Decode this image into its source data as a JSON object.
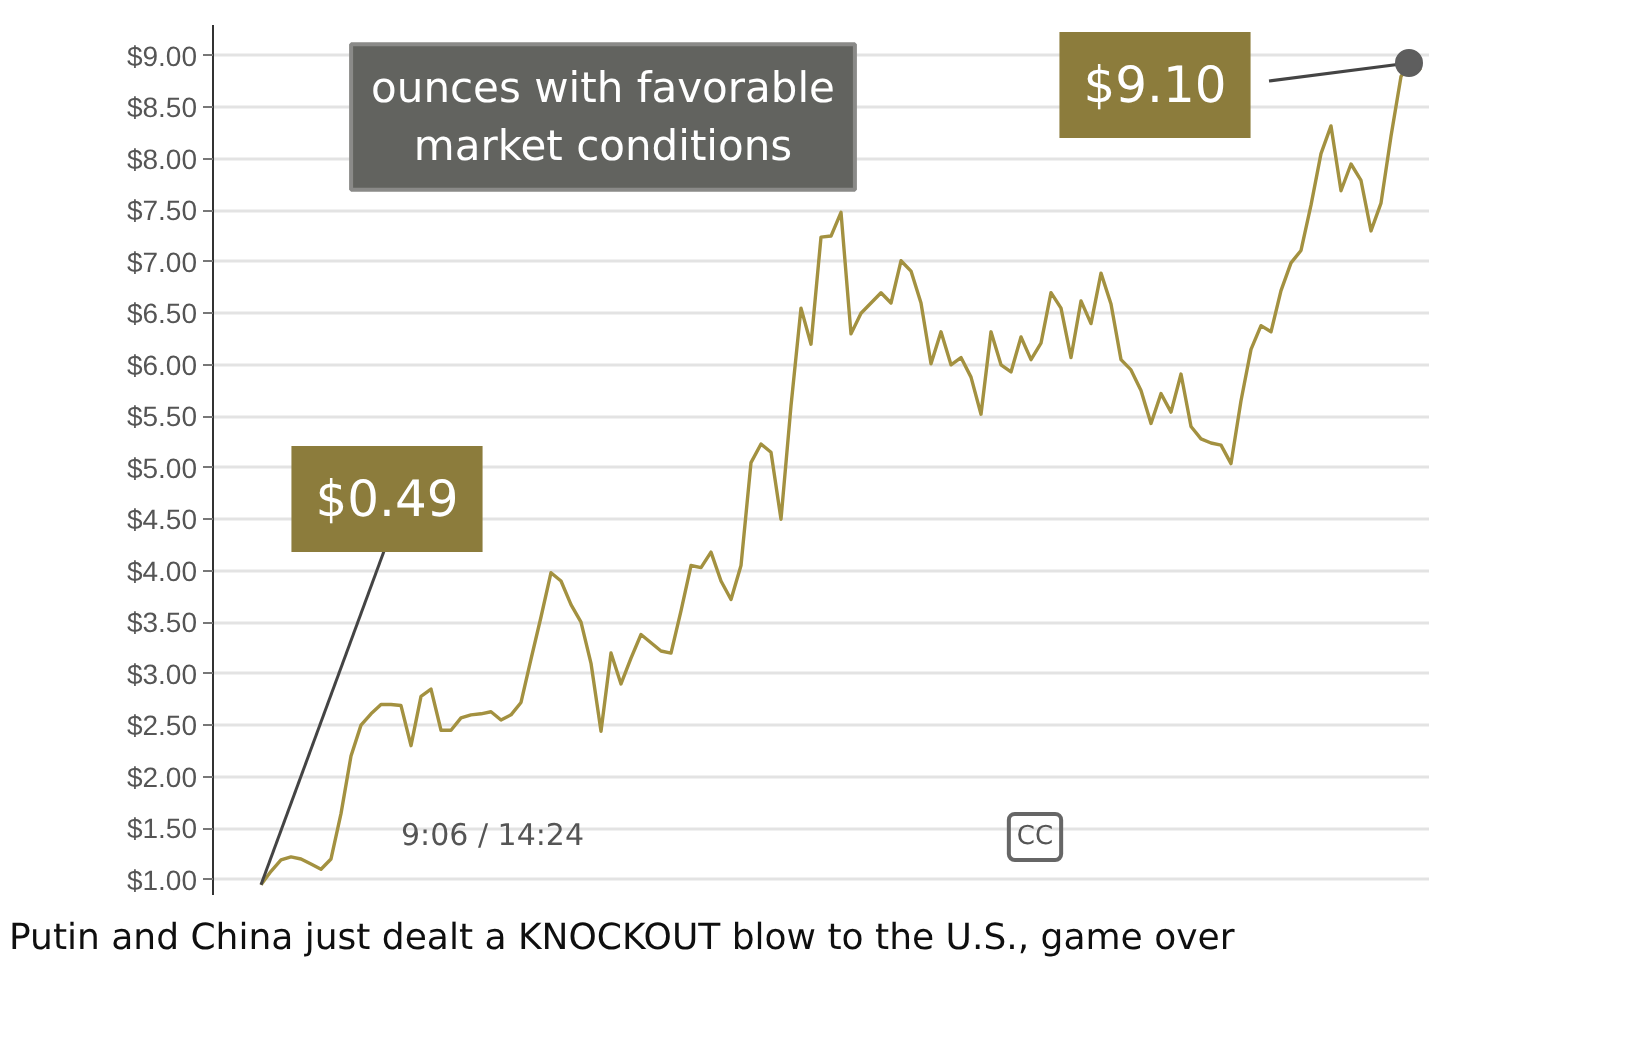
{
  "chart_data": {
    "type": "line",
    "title": "Putin and China just dealt a KNOCKOUT blow to the U.S., game over",
    "categories": [
      null,
      null,
      null,
      null,
      null,
      null,
      null,
      null,
      null,
      null,
      null,
      null,
      null,
      null,
      null,
      null,
      null,
      null,
      null,
      null,
      null,
      null,
      null,
      null,
      null,
      null,
      null,
      null,
      null,
      null,
      null,
      null,
      null,
      null,
      null,
      null,
      null,
      null,
      null,
      null,
      null,
      null,
      null,
      null,
      null,
      null,
      null,
      null,
      null,
      null,
      null,
      null,
      null,
      null,
      null,
      null,
      null,
      null,
      null,
      null,
      null,
      null,
      null,
      null,
      null,
      null,
      null,
      null,
      null,
      null,
      null,
      null,
      null,
      null,
      null,
      null,
      null,
      null,
      null,
      null,
      null,
      null,
      null,
      null,
      null,
      null,
      null,
      null,
      null,
      null,
      null,
      null,
      null,
      null,
      null,
      null,
      null,
      null,
      null,
      null,
      null,
      null,
      null,
      null,
      null,
      null,
      null,
      null,
      null,
      null,
      null,
      null,
      null,
      null,
      null,
      null,
      null
    ],
    "values": [
      0.95,
      1.08,
      1.19,
      1.22,
      1.2,
      1.15,
      1.1,
      1.2,
      1.64,
      2.2,
      2.5,
      2.61,
      2.7,
      2.7,
      2.69,
      2.3,
      2.78,
      2.85,
      2.45,
      2.45,
      2.57,
      2.6,
      2.61,
      2.63,
      2.55,
      2.6,
      2.72,
      3.14,
      3.55,
      3.98,
      3.9,
      3.67,
      3.5,
      3.1,
      2.44,
      3.2,
      2.9,
      3.15,
      3.38,
      3.3,
      3.22,
      3.2,
      3.61,
      4.05,
      4.03,
      4.18,
      3.9,
      3.72,
      4.05,
      5.05,
      5.23,
      5.15,
      4.5,
      5.6,
      6.55,
      6.2,
      7.24,
      7.25,
      7.48,
      6.3,
      6.5,
      6.6,
      6.7,
      6.6,
      7.01,
      6.91,
      6.6,
      6.01,
      6.32,
      6.0,
      6.07,
      5.88,
      5.52,
      6.32,
      6.0,
      5.93,
      6.27,
      6.05,
      6.21,
      6.7,
      6.55,
      6.07,
      6.62,
      6.4,
      6.89,
      6.59,
      6.05,
      5.95,
      5.75,
      5.43,
      5.72,
      5.54,
      5.91,
      5.4,
      5.28,
      5.24,
      5.22,
      5.04,
      5.65,
      6.15,
      6.38,
      6.32,
      6.72,
      6.99,
      7.11,
      7.55,
      8.05,
      8.32,
      7.69,
      7.95,
      7.79,
      7.3,
      7.57,
      8.22,
      8.8,
      8.94,
      8.86
    ],
    "color": "#a39140",
    "ylim": [
      0.85,
      9.3
    ],
    "yticks": [
      {
        "value": 1,
        "label": "$1.00"
      },
      {
        "value": 1.5,
        "label": "$1.50"
      },
      {
        "value": 2,
        "label": "$2.00"
      },
      {
        "value": 2.5,
        "label": "$2.50"
      },
      {
        "value": 3,
        "label": "$3.00"
      },
      {
        "value": 3.5,
        "label": "$3.50"
      },
      {
        "value": 4,
        "label": "$4.00"
      },
      {
        "value": 4.5,
        "label": "$4.50"
      },
      {
        "value": 5,
        "label": "$5.00"
      },
      {
        "value": 5.5,
        "label": "$5.50"
      },
      {
        "value": 6,
        "label": "$6.00"
      },
      {
        "value": 6.5,
        "label": "$6.50"
      },
      {
        "value": 7,
        "label": "$7.00"
      },
      {
        "value": 7.5,
        "label": "$7.50"
      },
      {
        "value": 8,
        "label": "$8.00"
      },
      {
        "value": 8.5,
        "label": "$8.50"
      },
      {
        "value": 9,
        "label": "$9.00"
      }
    ],
    "grid": "y",
    "tick_labels": "y",
    "annotations": [
      "ounces with favorable market conditions",
      "$0.49",
      "$9.10",
      "9:06 / 14:24",
      "CC"
    ]
  }
}
